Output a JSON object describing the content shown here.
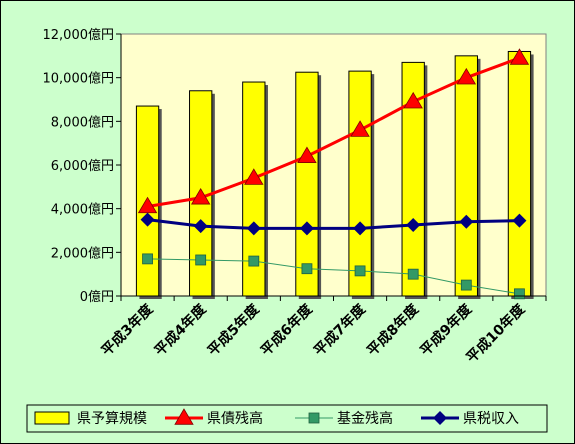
{
  "chart_data": {
    "type": "bar",
    "categories": [
      "平成3年度",
      "平成4年度",
      "平成5年度",
      "平成6年度",
      "平成7年度",
      "平成8年度",
      "平成9年度",
      "平成10年度"
    ],
    "ylim": [
      0,
      12000
    ],
    "yticks": [
      "0億円",
      "2,000億円",
      "4,000億円",
      "6,000億円",
      "8,000億円",
      "10,000億円",
      "12,000億円"
    ],
    "ytick_values": [
      0,
      2000,
      4000,
      6000,
      8000,
      10000,
      12000
    ],
    "series": [
      {
        "name": "県予算規模",
        "kind": "bar",
        "color": "#ffff00",
        "values": [
          8700,
          9400,
          9800,
          10250,
          10300,
          10700,
          11000,
          11200
        ]
      },
      {
        "name": "県債残高",
        "kind": "line",
        "marker": "triangle",
        "color": "#ff0000",
        "values": [
          4100,
          4500,
          5400,
          6400,
          7600,
          8900,
          10000,
          10900
        ]
      },
      {
        "name": "基金残高",
        "kind": "line",
        "marker": "square",
        "color": "#339966",
        "values": [
          1700,
          1650,
          1600,
          1250,
          1150,
          1000,
          500,
          100
        ]
      },
      {
        "name": "県税収入",
        "kind": "line",
        "marker": "diamond",
        "color": "#000080",
        "values": [
          3500,
          3200,
          3100,
          3100,
          3100,
          3250,
          3400,
          3450
        ]
      }
    ],
    "grid": false,
    "legend_position": "bottom"
  }
}
